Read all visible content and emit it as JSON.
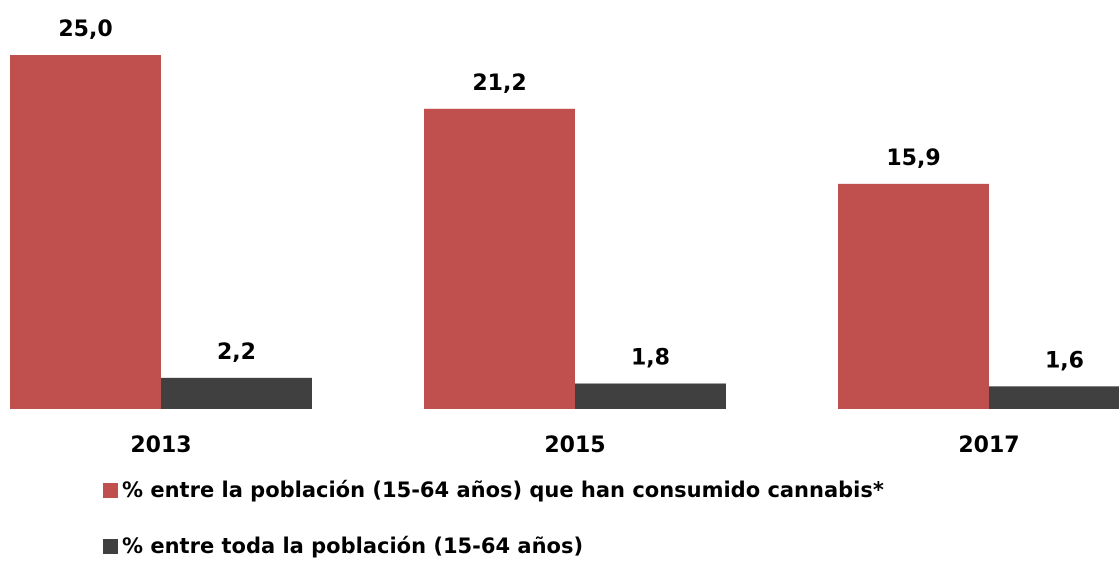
{
  "chart_data": {
    "type": "bar",
    "categories": [
      "2013",
      "2015",
      "2017"
    ],
    "series": [
      {
        "name": "% entre la población (15-64 años) que han consumido cannabis*",
        "color": "#c0504d",
        "values": [
          25.0,
          21.2,
          15.9
        ],
        "value_labels": [
          "25,0",
          "21,2",
          "15,9"
        ]
      },
      {
        "name": "% entre toda la población (15-64 años)",
        "color": "#404040",
        "values": [
          2.2,
          1.8,
          1.6
        ],
        "value_labels": [
          "2,2",
          "1,8",
          "1,6"
        ]
      }
    ],
    "legend": "bottom"
  }
}
